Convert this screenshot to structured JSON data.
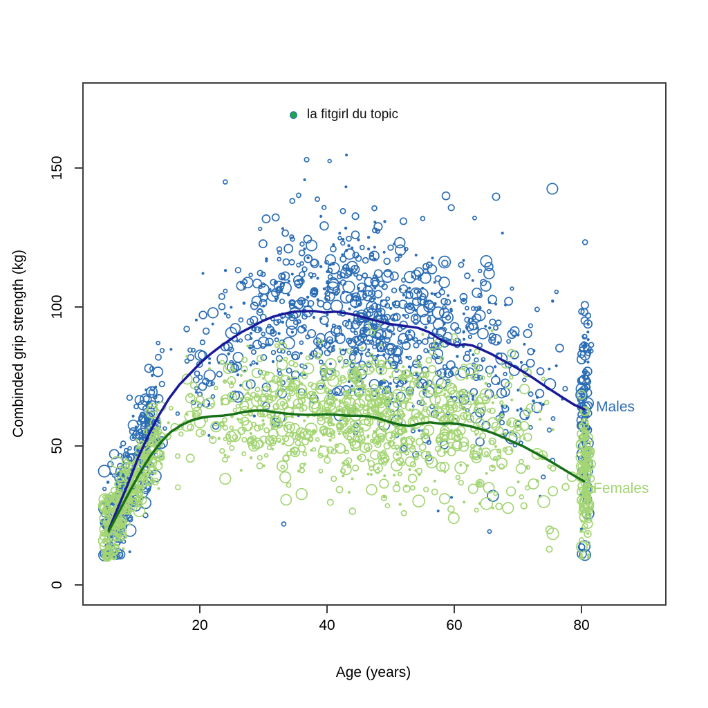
{
  "figure": {
    "x_axis_title": "Age (years)",
    "y_axis_title": "Combinded grip strength (kg)",
    "legend_label": "la fitgirl du topic",
    "males_label": "Males",
    "females_label": "Females"
  },
  "colors": {
    "male_point": "#2b6db5",
    "male_line": "#1a1a99",
    "female_point": "#a4d574",
    "female_line": "#176f17",
    "axis": "#3c3c3c",
    "legend_dot_fill": "#21a44f",
    "legend_dot_stroke": "#2b6db5"
  },
  "chart_data": {
    "type": "scatter",
    "title": "",
    "xlabel": "Age (years)",
    "ylabel": "Combinded grip strength (kg)",
    "x_ticks": [
      20,
      40,
      60,
      80
    ],
    "y_ticks": [
      0,
      50,
      100,
      150
    ],
    "xlim": [
      1.6,
      93.3
    ],
    "ylim": [
      -7,
      180
    ],
    "grid": false,
    "legend": {
      "position": "top-center",
      "entries": [
        {
          "label": "la fitgirl du topic",
          "marker": "filled-dot"
        }
      ]
    },
    "series": [
      {
        "name": "Males",
        "point_color": "#2b6db5",
        "line_color": "#1a1a99",
        "label_color": "#2b6db5",
        "trend": [
          [
            5.7,
            19.9
          ],
          [
            7.1,
            27.6
          ],
          [
            8.7,
            36.3
          ],
          [
            10.3,
            45.8
          ],
          [
            12,
            54.2
          ],
          [
            13.6,
            61.2
          ],
          [
            15.2,
            67.2
          ],
          [
            16.8,
            72.1
          ],
          [
            18.5,
            76.1
          ],
          [
            20.1,
            79.9
          ],
          [
            21.7,
            83.1
          ],
          [
            23.4,
            86.1
          ],
          [
            25,
            88.6
          ],
          [
            26.6,
            91
          ],
          [
            28.3,
            93
          ],
          [
            29.9,
            95
          ],
          [
            31.5,
            96.5
          ],
          [
            33.2,
            97.5
          ],
          [
            34.8,
            98.3
          ],
          [
            36.4,
            98.5
          ],
          [
            38,
            98.5
          ],
          [
            39.7,
            98
          ],
          [
            41.3,
            98.3
          ],
          [
            42.9,
            97.8
          ],
          [
            44.6,
            97
          ],
          [
            46.2,
            96
          ],
          [
            47.8,
            95
          ],
          [
            49.5,
            94
          ],
          [
            51.1,
            93.5
          ],
          [
            52.7,
            93
          ],
          [
            54.3,
            92.5
          ],
          [
            56,
            91
          ],
          [
            57.6,
            88.6
          ],
          [
            59.2,
            86.8
          ],
          [
            60.3,
            86.1
          ],
          [
            61.6,
            86.6
          ],
          [
            62.9,
            86.1
          ],
          [
            64.2,
            84.8
          ],
          [
            65.8,
            83.1
          ],
          [
            67.4,
            81.1
          ],
          [
            69,
            79.1
          ],
          [
            70.7,
            76.9
          ],
          [
            72.3,
            74.6
          ],
          [
            73.9,
            72.1
          ],
          [
            75.5,
            69.7
          ],
          [
            77.2,
            67.2
          ],
          [
            78.8,
            64.9
          ],
          [
            80.4,
            63.2
          ]
        ],
        "scatter_gen": {
          "count": 1400,
          "sd_base": 8,
          "sd_slope": 0.22,
          "sd_max": 19,
          "v_min": 11,
          "v_max": 155
        }
      },
      {
        "name": "Females",
        "point_color": "#a4d574",
        "line_color": "#176f17",
        "label_color": "#a4d574",
        "trend": [
          [
            5.7,
            19.4
          ],
          [
            7.3,
            26.4
          ],
          [
            8.9,
            33.3
          ],
          [
            10.5,
            40
          ],
          [
            12.2,
            46.3
          ],
          [
            13.8,
            51.2
          ],
          [
            15.4,
            55
          ],
          [
            17.1,
            57.5
          ],
          [
            18.7,
            59.2
          ],
          [
            20.3,
            60.2
          ],
          [
            22,
            60.7
          ],
          [
            23.6,
            60.9
          ],
          [
            25.2,
            61.4
          ],
          [
            26.8,
            62.2
          ],
          [
            28.5,
            62.7
          ],
          [
            30.1,
            62.7
          ],
          [
            31.7,
            62.2
          ],
          [
            33.4,
            61.7
          ],
          [
            35,
            61.4
          ],
          [
            36.6,
            61.2
          ],
          [
            38.3,
            61.2
          ],
          [
            39.9,
            61.4
          ],
          [
            41.5,
            61.2
          ],
          [
            43.2,
            60.9
          ],
          [
            44.8,
            60.9
          ],
          [
            46.4,
            60.7
          ],
          [
            48,
            60
          ],
          [
            49.7,
            58.7
          ],
          [
            51.3,
            57.7
          ],
          [
            52.9,
            57.2
          ],
          [
            54.6,
            58
          ],
          [
            56.2,
            58.5
          ],
          [
            57.8,
            58
          ],
          [
            59.5,
            58.2
          ],
          [
            61.1,
            57.7
          ],
          [
            62.7,
            57
          ],
          [
            64.3,
            56
          ],
          [
            66,
            54.7
          ],
          [
            67.6,
            53.2
          ],
          [
            69.2,
            51.5
          ],
          [
            70.9,
            49.8
          ],
          [
            72.5,
            47.8
          ],
          [
            74.1,
            45.8
          ],
          [
            75.8,
            43.5
          ],
          [
            77.4,
            41.3
          ],
          [
            79,
            39.1
          ],
          [
            80.4,
            37.3
          ]
        ],
        "scatter_gen": {
          "count": 1400,
          "sd_base": 6,
          "sd_slope": 0.15,
          "sd_max": 13,
          "v_min": 10,
          "v_max": 100
        }
      }
    ],
    "outliers": [
      {
        "series": 0,
        "age": 33.2,
        "v": 21.9,
        "r": 3
      },
      {
        "series": 0,
        "age": 36.8,
        "v": 153,
        "r": 3.2
      },
      {
        "series": 0,
        "age": 40.4,
        "v": 152.5,
        "r": 2.4
      },
      {
        "series": 0,
        "age": 24.0,
        "v": 145,
        "r": 3
      },
      {
        "series": 0,
        "age": 58.7,
        "v": 140,
        "r": 5.5
      },
      {
        "series": 0,
        "age": 63.2,
        "v": 132,
        "r": 2.6
      },
      {
        "series": 1,
        "age": 44.0,
        "v": 26.5,
        "r": 4.5
      },
      {
        "series": 1,
        "age": 49.5,
        "v": 28.5,
        "r": 3
      }
    ],
    "age_distribution": {
      "young_frac": 0.22,
      "young_min": 5,
      "young_span": 9,
      "mid_frac": 0.68,
      "mid_min": 13.5,
      "mid_span": 66,
      "old_min": 79.9,
      "old_span": 1.4,
      "age_step": 0.5
    },
    "point_style": {
      "r_min": 2,
      "r_max": 8.5,
      "stroke_width": 1.7,
      "seed": 1337
    }
  }
}
